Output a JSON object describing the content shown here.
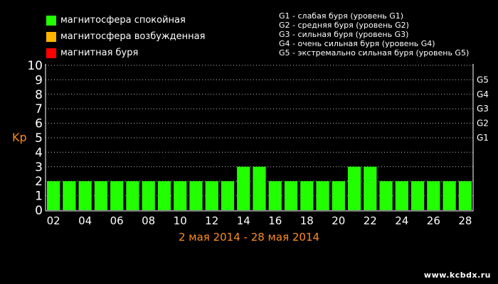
{
  "legend": [
    {
      "label": "магнитосфера спокойная",
      "color": "#22ff00"
    },
    {
      "label": "магнитосфера возбужденная",
      "color": "#ffb400"
    },
    {
      "label": "магнитная буря",
      "color": "#ff0000"
    }
  ],
  "storm_levels": [
    "G1 - слабая буря (уровень G1)",
    "G2 - средняя буря (уровень G2)",
    "G3 - сильная буря (уровень G3)",
    "G4 - очень сильная буря (уровень G4)",
    "G5 - экстремально сильная буря (уровень G5)"
  ],
  "site": "www.kcbdx.ru",
  "colors": {
    "bar": "#22ff00",
    "accent": "#ff8c1a",
    "grid": "#bbbbbb"
  },
  "chart_data": {
    "type": "bar",
    "ylabel": "Kp",
    "xlabel": "2 мая 2014 - 28 мая 2014",
    "ylim": [
      0,
      10
    ],
    "yticks": [
      "0",
      "1",
      "2",
      "3",
      "4",
      "5",
      "6",
      "7",
      "8",
      "9",
      "10"
    ],
    "right_ticks": [
      {
        "label": "G1",
        "value": 5
      },
      {
        "label": "G2",
        "value": 6
      },
      {
        "label": "G3",
        "value": 7
      },
      {
        "label": "G4",
        "value": 8
      },
      {
        "label": "G5",
        "value": 9
      }
    ],
    "categories": [
      "02",
      "03",
      "04",
      "05",
      "06",
      "07",
      "08",
      "09",
      "10",
      "11",
      "12",
      "13",
      "14",
      "15",
      "16",
      "17",
      "18",
      "19",
      "20",
      "21",
      "22",
      "23",
      "24",
      "25",
      "26",
      "27",
      "28"
    ],
    "tick_labels": [
      "02",
      "04",
      "06",
      "08",
      "10",
      "12",
      "14",
      "16",
      "18",
      "20",
      "22",
      "24",
      "26",
      "28"
    ],
    "values": [
      2,
      2,
      2,
      2,
      2,
      2,
      2,
      2,
      2,
      2,
      2,
      2,
      3,
      3,
      2,
      2,
      2,
      2,
      2,
      3,
      3,
      2,
      2,
      2,
      2,
      2,
      2
    ],
    "grid": true
  }
}
